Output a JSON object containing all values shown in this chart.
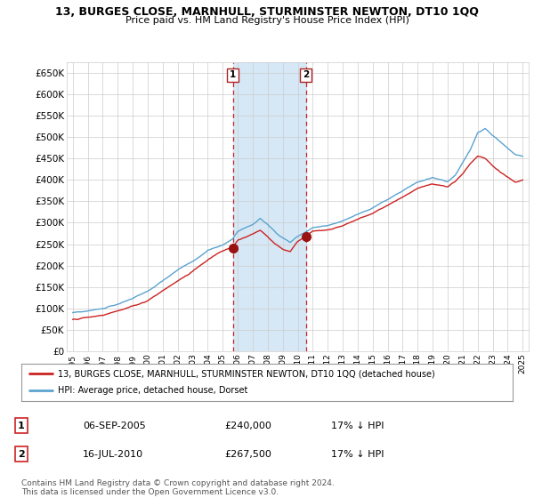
{
  "title": "13, BURGES CLOSE, MARNHULL, STURMINSTER NEWTON, DT10 1QQ",
  "subtitle": "Price paid vs. HM Land Registry's House Price Index (HPI)",
  "ylim": [
    0,
    675000
  ],
  "yticks": [
    0,
    50000,
    100000,
    150000,
    200000,
    250000,
    300000,
    350000,
    400000,
    450000,
    500000,
    550000,
    600000,
    650000
  ],
  "ytick_labels": [
    "£0",
    "£50K",
    "£100K",
    "£150K",
    "£200K",
    "£250K",
    "£300K",
    "£350K",
    "£400K",
    "£450K",
    "£500K",
    "£550K",
    "£600K",
    "£650K"
  ],
  "hpi_color": "#5ba3d0",
  "price_color": "#cc2222",
  "sale1_x": 2005.67,
  "sale1_price": 240000,
  "sale1_pct": "17%",
  "sale1_date": "06-SEP-2005",
  "sale2_x": 2010.54,
  "sale2_price": 267500,
  "sale2_pct": "17%",
  "sale2_date": "16-JUL-2010",
  "legend_label1": "13, BURGES CLOSE, MARNHULL, STURMINSTER NEWTON, DT10 1QQ (detached house)",
  "legend_label2": "HPI: Average price, detached house, Dorset",
  "footnote": "Contains HM Land Registry data © Crown copyright and database right 2024.\nThis data is licensed under the Open Government Licence v3.0.",
  "shade_color": "#d6e8f5",
  "grid_color": "#cccccc",
  "bg_color": "#ffffff"
}
